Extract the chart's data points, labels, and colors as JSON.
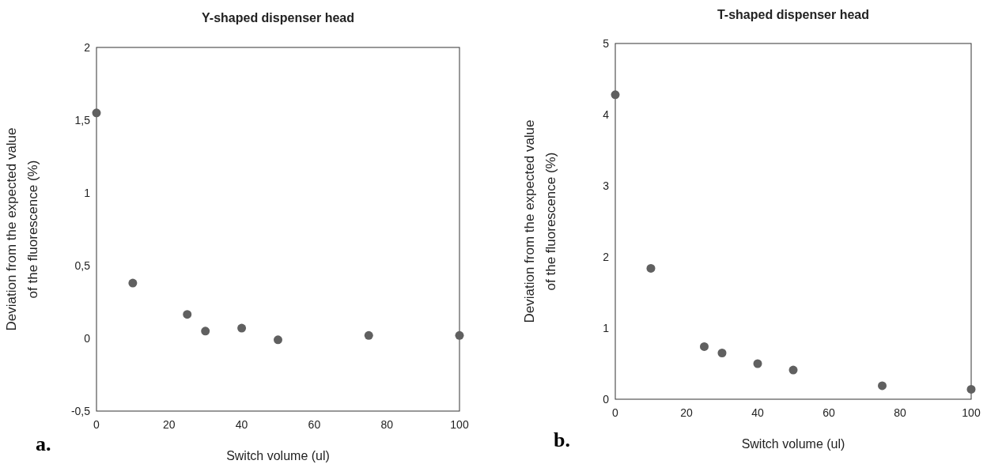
{
  "chart_data": [
    {
      "type": "scatter",
      "title": "Y-shaped dispenser head",
      "xlabel": "Switch volume (ul)",
      "ylabel": "Deviation from the expected value\nof the fluorescence (%)",
      "annotations": [
        "a."
      ],
      "x": [
        0,
        10,
        25,
        30,
        40,
        50,
        75,
        100
      ],
      "series": [
        {
          "color": "#606060",
          "values": [
            1.55,
            0.38,
            0.165,
            0.05,
            0.07,
            -0.01,
            0.02,
            0.02
          ]
        }
      ],
      "xlim": [
        0,
        100
      ],
      "xticks": [
        0,
        20,
        40,
        60,
        80,
        100
      ],
      "ylim": [
        -0.5,
        2
      ],
      "yticks": [
        {
          "value": -0.5,
          "label": "-0,5"
        },
        0,
        {
          "value": 0.5,
          "label": "0,5"
        },
        1,
        {
          "value": 1.5,
          "label": "1,5"
        },
        2
      ],
      "grid": false,
      "marker": "circle"
    },
    {
      "type": "scatter",
      "title": "T-shaped dispenser head",
      "xlabel": "Switch volume (ul)",
      "ylabel": "Deviation from the expected value\nof the fluorescence (%)",
      "annotations": [
        "b."
      ],
      "x": [
        0,
        10,
        25,
        30,
        40,
        50,
        75,
        100
      ],
      "series": [
        {
          "color": "#606060",
          "values": [
            4.28,
            1.84,
            0.74,
            0.65,
            0.5,
            0.41,
            0.19,
            0.14
          ]
        }
      ],
      "xlim": [
        0,
        100
      ],
      "xticks": [
        0,
        20,
        40,
        60,
        80,
        100
      ],
      "ylim": [
        0,
        5
      ],
      "yticks": [
        0,
        1,
        2,
        3,
        4,
        5
      ],
      "grid": false,
      "marker": "circle"
    }
  ]
}
